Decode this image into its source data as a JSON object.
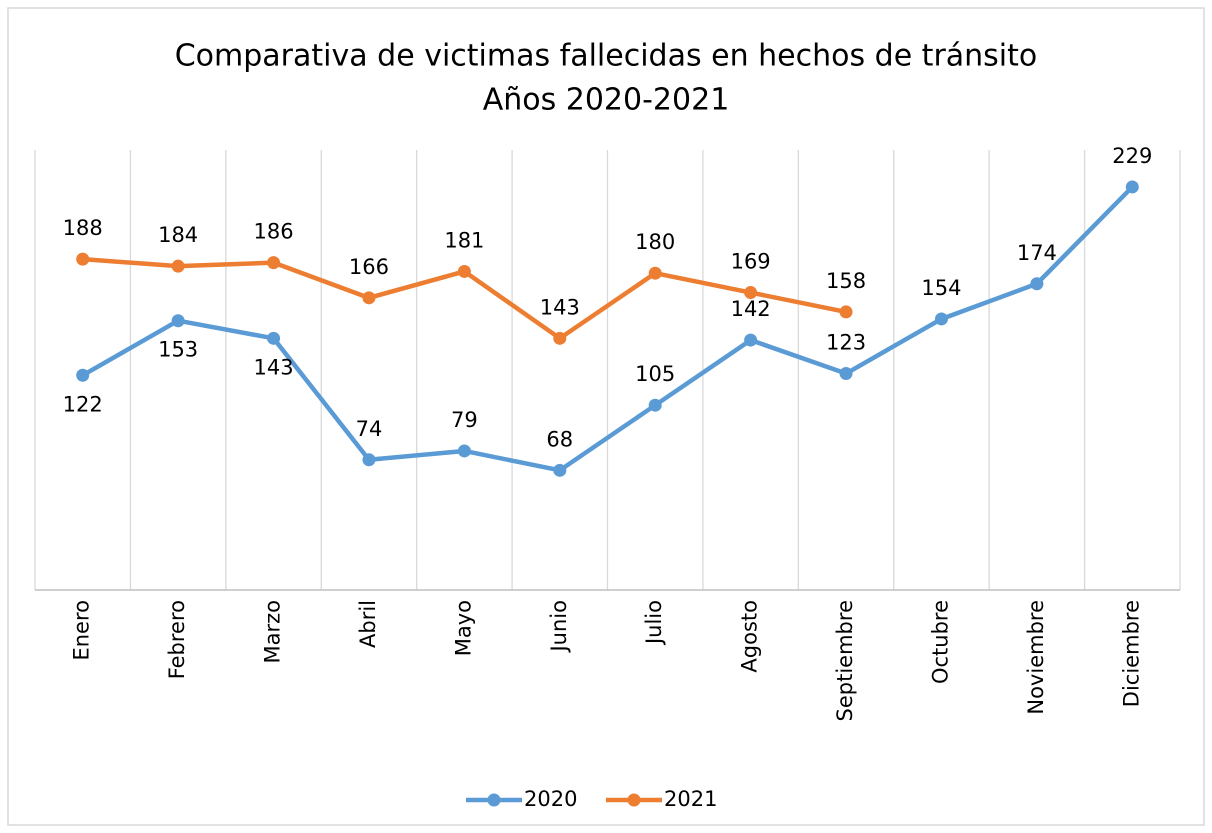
{
  "chart_data": {
    "type": "line",
    "title": "Comparativa de victimas fallecidas en hechos de tránsito",
    "subtitle": "Años 2020-2021",
    "categories": [
      "Enero",
      "Febrero",
      "Marzo",
      "Abril",
      "Mayo",
      "Junio",
      "Julio",
      "Agosto",
      "Septiembre",
      "Octubre",
      "Noviembre",
      "Diciembre"
    ],
    "series": [
      {
        "name": "2020",
        "color": "#5b9bd5",
        "values": [
          122,
          153,
          143,
          74,
          79,
          68,
          105,
          142,
          123,
          154,
          174,
          229
        ]
      },
      {
        "name": "2021",
        "color": "#ed7d31",
        "values": [
          188,
          184,
          186,
          166,
          181,
          143,
          180,
          169,
          158,
          null,
          null,
          null
        ]
      }
    ],
    "ylim": [
      0,
      250
    ],
    "grid": true,
    "legend": "bottom"
  }
}
